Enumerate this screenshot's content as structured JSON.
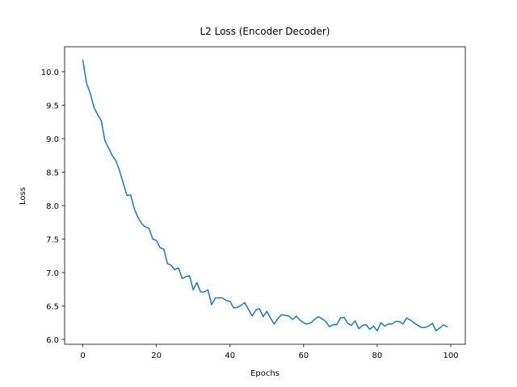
{
  "chart_data": {
    "type": "line",
    "title": "L2 Loss (Encoder Decoder)",
    "x_label": "Epochs",
    "y_label": "Loss",
    "x": [
      0,
      1,
      2,
      3,
      4,
      5,
      6,
      7,
      8,
      9,
      10,
      11,
      12,
      13,
      14,
      15,
      16,
      17,
      18,
      19,
      20,
      21,
      22,
      23,
      24,
      25,
      26,
      27,
      28,
      29,
      30,
      31,
      32,
      33,
      34,
      35,
      36,
      37,
      38,
      39,
      40,
      41,
      42,
      43,
      44,
      45,
      46,
      47,
      48,
      49,
      50,
      51,
      52,
      53,
      54,
      55,
      56,
      57,
      58,
      59,
      60,
      61,
      62,
      63,
      64,
      65,
      66,
      67,
      68,
      69,
      70,
      71,
      72,
      73,
      74,
      75,
      76,
      77,
      78,
      79,
      80,
      81,
      82,
      83,
      84,
      85,
      86,
      87,
      88,
      89,
      90,
      91,
      92,
      93,
      94,
      95,
      96,
      97,
      98,
      99
    ],
    "series": [
      {
        "color": "#1f77b4",
        "values": [
          10.17,
          9.83,
          9.68,
          9.47,
          9.36,
          9.27,
          8.97,
          8.86,
          8.75,
          8.67,
          8.52,
          8.33,
          8.15,
          8.16,
          7.95,
          7.82,
          7.73,
          7.68,
          7.66,
          7.5,
          7.48,
          7.37,
          7.35,
          7.13,
          7.11,
          7.04,
          7.07,
          6.91,
          6.94,
          6.95,
          6.74,
          6.85,
          6.71,
          6.71,
          6.74,
          6.52,
          6.62,
          6.62,
          6.62,
          6.58,
          6.57,
          6.47,
          6.48,
          6.51,
          6.55,
          6.45,
          6.35,
          6.44,
          6.46,
          6.34,
          6.42,
          6.32,
          6.23,
          6.31,
          6.37,
          6.36,
          6.35,
          6.3,
          6.35,
          6.29,
          6.25,
          6.23,
          6.25,
          6.3,
          6.34,
          6.31,
          6.27,
          6.19,
          6.22,
          6.22,
          6.32,
          6.33,
          6.24,
          6.21,
          6.28,
          6.16,
          6.21,
          6.22,
          6.15,
          6.2,
          6.13,
          6.25,
          6.2,
          6.23,
          6.23,
          6.27,
          6.27,
          6.23,
          6.32,
          6.29,
          6.25,
          6.21,
          6.18,
          6.18,
          6.2,
          6.24,
          6.13,
          6.17,
          6.22,
          6.19
        ]
      }
    ],
    "xlim": [
      -4.95,
      103.95
    ],
    "xticks": [
      0,
      20,
      40,
      60,
      80,
      100
    ],
    "ylim": [
      5.928,
      10.373
    ],
    "yticks": [
      {
        "value": 6,
        "label": "6.0"
      },
      6.5,
      {
        "value": 7,
        "label": "7.0"
      },
      7.5,
      {
        "value": 8,
        "label": "8.0"
      },
      8.5,
      {
        "value": 9,
        "label": "9.0"
      },
      9.5,
      {
        "value": 10,
        "label": "10.0"
      }
    ],
    "grid": false
  }
}
